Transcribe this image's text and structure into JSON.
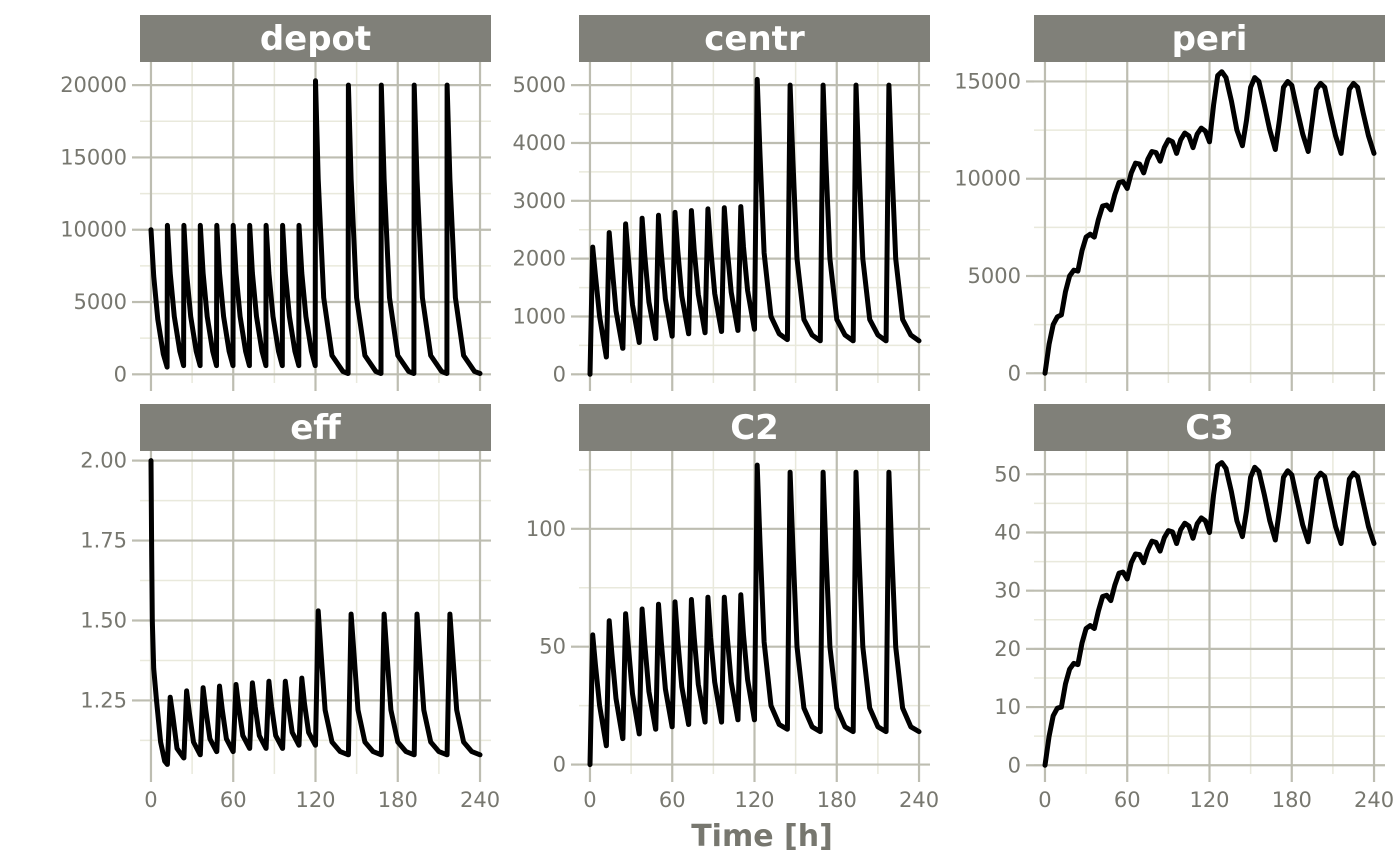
{
  "chart_data": {
    "type": "line",
    "xlabel": "Time [h]",
    "colors": {
      "strip": "#808079",
      "grid_major": "#bdbdb1",
      "grid_minor": "#e9e9dc",
      "line": "#000000",
      "tick_text": "#77776f"
    },
    "panels": [
      {
        "name": "depot",
        "xlim": [
          -8,
          248
        ],
        "ylim": [
          -600,
          21600
        ],
        "xticks": [
          0,
          60,
          120,
          180,
          240
        ],
        "yticks": [
          0,
          5000,
          10000,
          15000,
          20000
        ],
        "ytick_labels": [
          "0",
          "5000",
          "10000",
          "15000",
          "20000"
        ],
        "x": [
          0,
          2,
          5,
          9,
          11.8,
          12,
          14,
          17,
          21,
          23.8,
          24,
          26,
          29,
          33,
          35.8,
          36,
          38,
          41,
          45,
          47.8,
          48,
          50,
          53,
          57,
          59.8,
          60,
          62,
          65,
          69,
          71.8,
          72,
          74,
          77,
          81,
          83.8,
          84,
          86,
          89,
          93,
          95.8,
          96,
          98,
          101,
          105,
          107.8,
          108,
          110,
          113,
          117,
          119.8,
          120,
          122,
          126,
          132,
          140,
          143.8,
          144,
          146,
          150,
          156,
          164,
          167.8,
          168,
          170,
          174,
          180,
          188,
          191.8,
          192,
          194,
          198,
          204,
          212,
          215.8,
          216,
          218,
          222,
          228,
          236,
          240
        ],
        "y": [
          10000,
          6800,
          3800,
          1400,
          500,
          10300,
          7000,
          4000,
          1600,
          600,
          10300,
          7000,
          4000,
          1600,
          600,
          10300,
          7000,
          4000,
          1600,
          600,
          10300,
          7000,
          4000,
          1600,
          600,
          10300,
          7000,
          4000,
          1600,
          600,
          10300,
          7000,
          4000,
          1600,
          600,
          10300,
          7000,
          4000,
          1600,
          600,
          10300,
          7000,
          4000,
          1600,
          600,
          10300,
          7000,
          4000,
          1600,
          600,
          20300,
          13500,
          5300,
          1300,
          200,
          60,
          20000,
          13500,
          5300,
          1300,
          200,
          60,
          20000,
          13500,
          5300,
          1300,
          200,
          60,
          20000,
          13500,
          5300,
          1300,
          200,
          60,
          20000,
          13500,
          5300,
          1300,
          200,
          60
        ]
      },
      {
        "name": "centr",
        "xlim": [
          -8,
          248
        ],
        "ylim": [
          -150,
          5400
        ],
        "xticks": [
          0,
          60,
          120,
          180,
          240
        ],
        "yticks": [
          0,
          1000,
          2000,
          3000,
          4000,
          5000
        ],
        "ytick_labels": [
          "0",
          "1000",
          "2000",
          "3000",
          "4000",
          "5000"
        ],
        "x": [
          0,
          2,
          4,
          7,
          11.9,
          12,
          14,
          16,
          19,
          23.9,
          24,
          26,
          28,
          31,
          35.9,
          36,
          38,
          40,
          43,
          47.9,
          48,
          50,
          52,
          55,
          59.9,
          60,
          62,
          64,
          67,
          71.9,
          72,
          74,
          76,
          79,
          83.9,
          84,
          86,
          88,
          91,
          95.9,
          96,
          98,
          100,
          103,
          107.9,
          108,
          110,
          112,
          115,
          119.9,
          120,
          122,
          124,
          127,
          132,
          138,
          143.9,
          144,
          146,
          148,
          151,
          156,
          162,
          167.9,
          168,
          170,
          172,
          175,
          180,
          186,
          191.9,
          192,
          194,
          196,
          199,
          204,
          210,
          215.9,
          216,
          218,
          220,
          223,
          228,
          234,
          240
        ],
        "y": [
          0,
          2200,
          1700,
          1000,
          300,
          300,
          2450,
          1900,
          1100,
          450,
          450,
          2600,
          2000,
          1200,
          550,
          550,
          2700,
          2050,
          1250,
          620,
          620,
          2750,
          2100,
          1300,
          660,
          660,
          2800,
          2150,
          1350,
          700,
          700,
          2830,
          2150,
          1380,
          720,
          720,
          2860,
          2200,
          1400,
          740,
          740,
          2880,
          2200,
          1420,
          760,
          760,
          2900,
          2200,
          1450,
          780,
          780,
          5100,
          3800,
          2100,
          1000,
          700,
          600,
          600,
          5000,
          3700,
          2000,
          950,
          680,
          580,
          580,
          5000,
          3700,
          2000,
          950,
          680,
          580,
          580,
          5000,
          3700,
          2000,
          950,
          680,
          580,
          580,
          5000,
          3700,
          2000,
          950,
          680,
          580
        ]
      },
      {
        "name": "peri",
        "xlim": [
          -8,
          248
        ],
        "ylim": [
          -500,
          16000
        ],
        "xticks": [
          0,
          60,
          120,
          180,
          240
        ],
        "yticks": [
          0,
          5000,
          10000,
          15000
        ],
        "ytick_labels": [
          "0",
          "5000",
          "10000",
          "15000"
        ],
        "x": [
          0,
          3,
          6,
          9,
          12,
          15,
          18,
          21,
          24,
          27,
          30,
          33,
          36,
          39,
          42,
          45,
          48,
          51,
          54,
          57,
          60,
          63,
          66,
          69,
          72,
          75,
          78,
          81,
          84,
          87,
          90,
          93,
          96,
          99,
          102,
          105,
          108,
          111,
          114,
          117,
          120,
          123,
          126,
          129,
          132,
          136,
          140,
          144,
          147,
          150,
          153,
          156,
          160,
          164,
          168,
          171,
          174,
          177,
          180,
          184,
          188,
          192,
          195,
          198,
          201,
          204,
          208,
          212,
          216,
          219,
          222,
          225,
          228,
          232,
          236,
          240
        ],
        "y": [
          0,
          1500,
          2500,
          2900,
          3000,
          4200,
          5000,
          5300,
          5250,
          6300,
          7000,
          7150,
          7000,
          7900,
          8600,
          8650,
          8400,
          9200,
          9800,
          9850,
          9500,
          10300,
          10800,
          10750,
          10300,
          11000,
          11400,
          11350,
          10900,
          11600,
          12000,
          11900,
          11300,
          12000,
          12350,
          12200,
          11600,
          12300,
          12600,
          12450,
          11900,
          13800,
          15300,
          15500,
          15200,
          14000,
          12500,
          11700,
          13000,
          14700,
          15200,
          15000,
          13800,
          12500,
          11500,
          13000,
          14700,
          15000,
          14800,
          13500,
          12300,
          11400,
          13000,
          14600,
          14900,
          14700,
          13400,
          12200,
          11300,
          13000,
          14600,
          14900,
          14700,
          13400,
          12200,
          11300
        ]
      },
      {
        "name": "eff",
        "xlim": [
          -8,
          248
        ],
        "ylim": [
          1.02,
          2.03
        ],
        "xticks": [
          0,
          60,
          120,
          180,
          240
        ],
        "yticks": [
          1.25,
          1.5,
          1.75,
          2.0
        ],
        "ytick_labels": [
          "1.25",
          "1.50",
          "1.75",
          "2.00"
        ],
        "x": [
          0,
          0.5,
          1,
          2,
          4,
          7,
          10,
          11.9,
          12,
          14,
          16,
          19,
          23.9,
          24,
          26,
          28,
          31,
          35.9,
          36,
          38,
          40,
          43,
          47.9,
          48,
          50,
          52,
          55,
          59.9,
          60,
          62,
          64,
          67,
          71.9,
          72,
          74,
          76,
          79,
          83.9,
          84,
          86,
          88,
          91,
          95.9,
          96,
          98,
          100,
          103,
          107.9,
          108,
          110,
          112,
          115,
          119.9,
          120,
          122,
          124,
          127,
          132,
          138,
          143.9,
          144,
          146,
          148,
          151,
          156,
          162,
          167.9,
          168,
          170,
          172,
          175,
          180,
          186,
          191.9,
          192,
          194,
          196,
          199,
          204,
          210,
          215.9,
          216,
          218,
          220,
          223,
          228,
          234,
          240
        ],
        "y": [
          2.0,
          1.7,
          1.5,
          1.35,
          1.25,
          1.12,
          1.06,
          1.05,
          1.05,
          1.26,
          1.2,
          1.1,
          1.07,
          1.07,
          1.28,
          1.21,
          1.12,
          1.08,
          1.08,
          1.29,
          1.22,
          1.13,
          1.09,
          1.09,
          1.295,
          1.22,
          1.13,
          1.09,
          1.09,
          1.3,
          1.23,
          1.14,
          1.1,
          1.1,
          1.305,
          1.23,
          1.14,
          1.1,
          1.1,
          1.31,
          1.23,
          1.14,
          1.1,
          1.1,
          1.31,
          1.24,
          1.15,
          1.11,
          1.11,
          1.32,
          1.24,
          1.15,
          1.11,
          1.11,
          1.53,
          1.4,
          1.22,
          1.12,
          1.09,
          1.08,
          1.08,
          1.52,
          1.4,
          1.22,
          1.12,
          1.09,
          1.08,
          1.08,
          1.52,
          1.4,
          1.22,
          1.12,
          1.09,
          1.08,
          1.08,
          1.52,
          1.4,
          1.22,
          1.12,
          1.09,
          1.08,
          1.08,
          1.52,
          1.4,
          1.22,
          1.12,
          1.09,
          1.08
        ]
      },
      {
        "name": "C2",
        "xlim": [
          -8,
          248
        ],
        "ylim": [
          -4,
          133
        ],
        "xticks": [
          0,
          60,
          120,
          180,
          240
        ],
        "yticks": [
          0,
          50,
          100
        ],
        "ytick_labels": [
          "0",
          "50",
          "100"
        ],
        "x": [
          0,
          2,
          4,
          7,
          11.9,
          12,
          14,
          16,
          19,
          23.9,
          24,
          26,
          28,
          31,
          35.9,
          36,
          38,
          40,
          43,
          47.9,
          48,
          50,
          52,
          55,
          59.9,
          60,
          62,
          64,
          67,
          71.9,
          72,
          74,
          76,
          79,
          83.9,
          84,
          86,
          88,
          91,
          95.9,
          96,
          98,
          100,
          103,
          107.9,
          108,
          110,
          112,
          115,
          119.9,
          120,
          122,
          124,
          127,
          132,
          138,
          143.9,
          144,
          146,
          148,
          151,
          156,
          162,
          167.9,
          168,
          170,
          172,
          175,
          180,
          186,
          191.9,
          192,
          194,
          196,
          199,
          204,
          210,
          215.9,
          216,
          218,
          220,
          223,
          228,
          234,
          240
        ],
        "y": [
          0,
          55,
          42,
          25,
          8,
          8,
          61,
          47,
          28,
          11,
          11,
          64,
          50,
          30,
          13,
          13,
          66,
          51,
          31,
          15,
          15,
          68,
          52,
          32,
          16,
          16,
          69,
          53,
          33,
          17,
          17,
          70,
          54,
          34,
          18,
          18,
          71,
          54,
          35,
          18,
          18,
          71,
          55,
          35,
          19,
          19,
          72,
          55,
          36,
          19,
          19,
          127,
          94,
          52,
          25,
          17,
          15,
          15,
          124,
          92,
          50,
          24,
          16,
          14,
          14,
          124,
          92,
          50,
          24,
          16,
          14,
          14,
          124,
          92,
          50,
          24,
          16,
          14,
          14,
          124,
          92,
          50,
          24,
          16,
          14
        ]
      },
      {
        "name": "C3",
        "xlim": [
          -8,
          248
        ],
        "ylim": [
          -1.5,
          54
        ],
        "xticks": [
          0,
          60,
          120,
          180,
          240
        ],
        "yticks": [
          0,
          10,
          20,
          30,
          40,
          50
        ],
        "ytick_labels": [
          "0",
          "10",
          "20",
          "30",
          "40",
          "50"
        ],
        "x": [
          0,
          3,
          6,
          9,
          12,
          15,
          18,
          21,
          24,
          27,
          30,
          33,
          36,
          39,
          42,
          45,
          48,
          51,
          54,
          57,
          60,
          63,
          66,
          69,
          72,
          75,
          78,
          81,
          84,
          87,
          90,
          93,
          96,
          99,
          102,
          105,
          108,
          111,
          114,
          117,
          120,
          123,
          126,
          129,
          132,
          136,
          140,
          144,
          147,
          150,
          153,
          156,
          160,
          164,
          168,
          171,
          174,
          177,
          180,
          184,
          188,
          192,
          195,
          198,
          201,
          204,
          208,
          212,
          216,
          219,
          222,
          225,
          228,
          232,
          236,
          240
        ],
        "y": [
          0,
          5,
          8.5,
          9.8,
          10,
          14,
          16.5,
          17.5,
          17.3,
          21,
          23.5,
          24,
          23.5,
          26.5,
          29,
          29.2,
          28.3,
          31,
          33,
          33.2,
          32,
          34.8,
          36.3,
          36.2,
          34.8,
          37,
          38.5,
          38.3,
          36.8,
          39.1,
          40.3,
          40.1,
          38.1,
          40.5,
          41.6,
          41.1,
          39,
          41.5,
          42.5,
          42,
          40,
          46.5,
          51.5,
          52,
          51,
          47,
          42,
          39.3,
          43.7,
          49.5,
          51.2,
          50.5,
          46.5,
          42,
          38.7,
          43.8,
          49.5,
          50.6,
          49.9,
          45.5,
          41.3,
          38.4,
          43.7,
          49.2,
          50.2,
          49.6,
          45.2,
          41,
          38.1,
          43.7,
          49.2,
          50.2,
          49.6,
          45.2,
          41,
          38.1
        ]
      }
    ]
  }
}
